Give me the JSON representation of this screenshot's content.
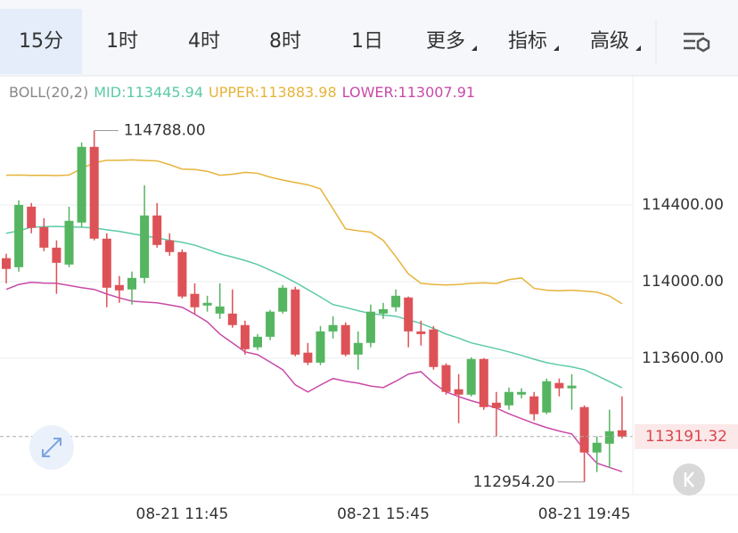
{
  "toolbar": {
    "tabs": [
      "15分",
      "1时",
      "4时",
      "8时",
      "1日",
      "更多",
      "指标",
      "高级"
    ],
    "active": 0
  },
  "chart_data": {
    "type": "candlestick",
    "indicator": "BOLL(20,2)",
    "categories": [
      null,
      null,
      null,
      null,
      null,
      null,
      null,
      null,
      null,
      null,
      null,
      null,
      null,
      null,
      "08-21 11:45",
      null,
      null,
      null,
      null,
      null,
      null,
      null,
      null,
      null,
      null,
      null,
      null,
      null,
      null,
      null,
      "08-21 15:45",
      null,
      null,
      null,
      null,
      null,
      null,
      null,
      null,
      null,
      null,
      null,
      null,
      null,
      null,
      null,
      "08-21 19:45",
      null,
      null,
      null
    ],
    "open": [
      114122,
      114075,
      114391,
      114284,
      114177,
      114089,
      114308,
      114703,
      114224,
      113982,
      113959,
      114019,
      114345,
      114215,
      114154,
      113936,
      113875,
      113833,
      113833,
      113773,
      113657,
      113712,
      113843,
      113959,
      113629,
      113577,
      113740,
      113773,
      113619,
      113680,
      113833,
      113866,
      113917,
      113740,
      113750,
      113564,
      113438,
      113410,
      113596,
      113368,
      113354,
      113410,
      113401,
      113317,
      113471,
      113443,
      113345,
      113108,
      113154,
      113224
    ],
    "high": [
      114145,
      114424,
      114410,
      114331,
      114215,
      114391,
      114726,
      114788,
      114252,
      114029,
      114052,
      114503,
      114410,
      114252,
      114168,
      113991,
      113926,
      113991,
      113959,
      113796,
      113726,
      113852,
      113982,
      113973,
      113680,
      113768,
      113819,
      113787,
      113740,
      113880,
      113889,
      113959,
      113922,
      113796,
      113768,
      113573,
      113517,
      113605,
      113601,
      113424,
      113447,
      113443,
      113424,
      113494,
      113494,
      113517,
      113354,
      113192,
      113331,
      113401
    ],
    "low": [
      113991,
      114052,
      114252,
      114159,
      113936,
      114075,
      114284,
      114215,
      113866,
      113889,
      113880,
      113991,
      114177,
      114135,
      113912,
      113833,
      113843,
      113805,
      113759,
      113619,
      113643,
      113694,
      113833,
      113610,
      113564,
      113564,
      113703,
      113610,
      113540,
      113657,
      113805,
      113843,
      113657,
      113666,
      113540,
      113410,
      113261,
      113401,
      113331,
      113192,
      113331,
      113391,
      113275,
      113308,
      113401,
      113331,
      112954.2,
      113006,
      113029,
      113182
    ],
    "close": [
      114066,
      114400,
      114280,
      114177,
      114098,
      114317,
      114703,
      114224,
      113968,
      113954,
      114019,
      114345,
      114191,
      114154,
      113922,
      113866,
      113889,
      113870,
      113773,
      113647,
      113712,
      113843,
      113968,
      113619,
      113577,
      113740,
      113773,
      113619,
      113680,
      113843,
      113856,
      113926,
      113740,
      113726,
      113554,
      113424,
      113410,
      113596,
      113345,
      113340,
      113424,
      113424,
      113308,
      113480,
      113443,
      113457,
      113108,
      113159,
      113219,
      113191.32
    ],
    "up_color": "#55b560",
    "down_color": "#dd5257",
    "series": [
      {
        "label": "MID:113445.94",
        "color": "#5ccaa8",
        "values": [
          114252,
          114265,
          114284,
          114286,
          114288,
          114285,
          114284,
          114280,
          114270,
          114262,
          114250,
          114238,
          114228,
          114215,
          114205,
          114190,
          114168,
          114145,
          114128,
          114110,
          114089,
          114060,
          114030,
          113996,
          113958,
          113920,
          113880,
          113865,
          113848,
          113833,
          113826,
          113819,
          113800,
          113782,
          113755,
          113726,
          113705,
          113680,
          113665,
          113650,
          113633,
          113615,
          113595,
          113577,
          113565,
          113555,
          113540,
          113510,
          113478,
          113445.94
        ]
      },
      {
        "label": "UPPER:113883.98",
        "color": "#e6b43a",
        "values": [
          114555,
          114556,
          114554,
          114555,
          114553,
          114556,
          114590,
          114620,
          114633,
          114633,
          114635,
          114632,
          114630,
          114610,
          114587,
          114585,
          114575,
          114555,
          114560,
          114570,
          114565,
          114545,
          114530,
          114517,
          114505,
          114484,
          114380,
          114275,
          114265,
          114258,
          114215,
          114130,
          114040,
          113991,
          113985,
          113982,
          113985,
          113991,
          113993,
          113990,
          114010,
          114019,
          113965,
          113955,
          113952,
          113955,
          113950,
          113945,
          113925,
          113883.98
        ]
      },
      {
        "label": "LOWER:113007.91",
        "color": "#c94aa8",
        "values": [
          113959,
          113985,
          113996,
          113992,
          113991,
          113980,
          113968,
          113959,
          113935,
          113915,
          113898,
          113893,
          113889,
          113878,
          113866,
          113830,
          113790,
          113726,
          113680,
          113633,
          113619,
          113580,
          113540,
          113461,
          113424,
          113460,
          113494,
          113480,
          113470,
          113455,
          113447,
          113480,
          113517,
          113530,
          113470,
          113424,
          113400,
          113378,
          113360,
          113340,
          113310,
          113285,
          113260,
          113238,
          113220,
          113205,
          113122,
          113052,
          113030,
          113007.91
        ]
      }
    ],
    "ylim": [
      112888,
      115074
    ],
    "yticks": [
      {
        "value": 113600,
        "label": "113600.00"
      },
      {
        "value": 114000,
        "label": "114000.00"
      },
      {
        "value": 114400,
        "label": "114400.00"
      }
    ],
    "grid": true,
    "high_label": {
      "value": 114788,
      "label": "114788.00"
    },
    "low_label": {
      "value": 112954.2,
      "label": "112954.20"
    },
    "last_price": {
      "value": 113191.32,
      "label": "113191.32"
    }
  }
}
